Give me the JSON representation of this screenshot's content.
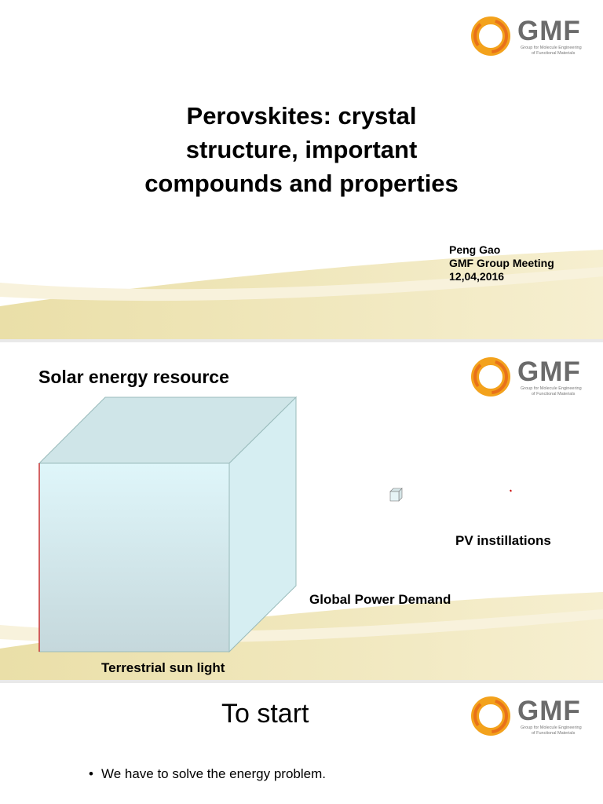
{
  "logo": {
    "name": "GMF",
    "line1": "Group for Molecule Engineering",
    "line2": "of Functional Materials"
  },
  "slides": [
    {
      "title_lines": [
        "Perovskites: crystal",
        "structure, important",
        "compounds and properties"
      ],
      "author": [
        "Peng Gao",
        "GMF Group Meeting",
        "12,04,2016"
      ]
    },
    {
      "title": "Solar energy resource",
      "labels": [
        "PV instillations",
        "Global Power Demand",
        "Terrestrial sun light"
      ]
    },
    {
      "title": "To start",
      "bullets": [
        "We have to solve the energy problem."
      ]
    }
  ]
}
